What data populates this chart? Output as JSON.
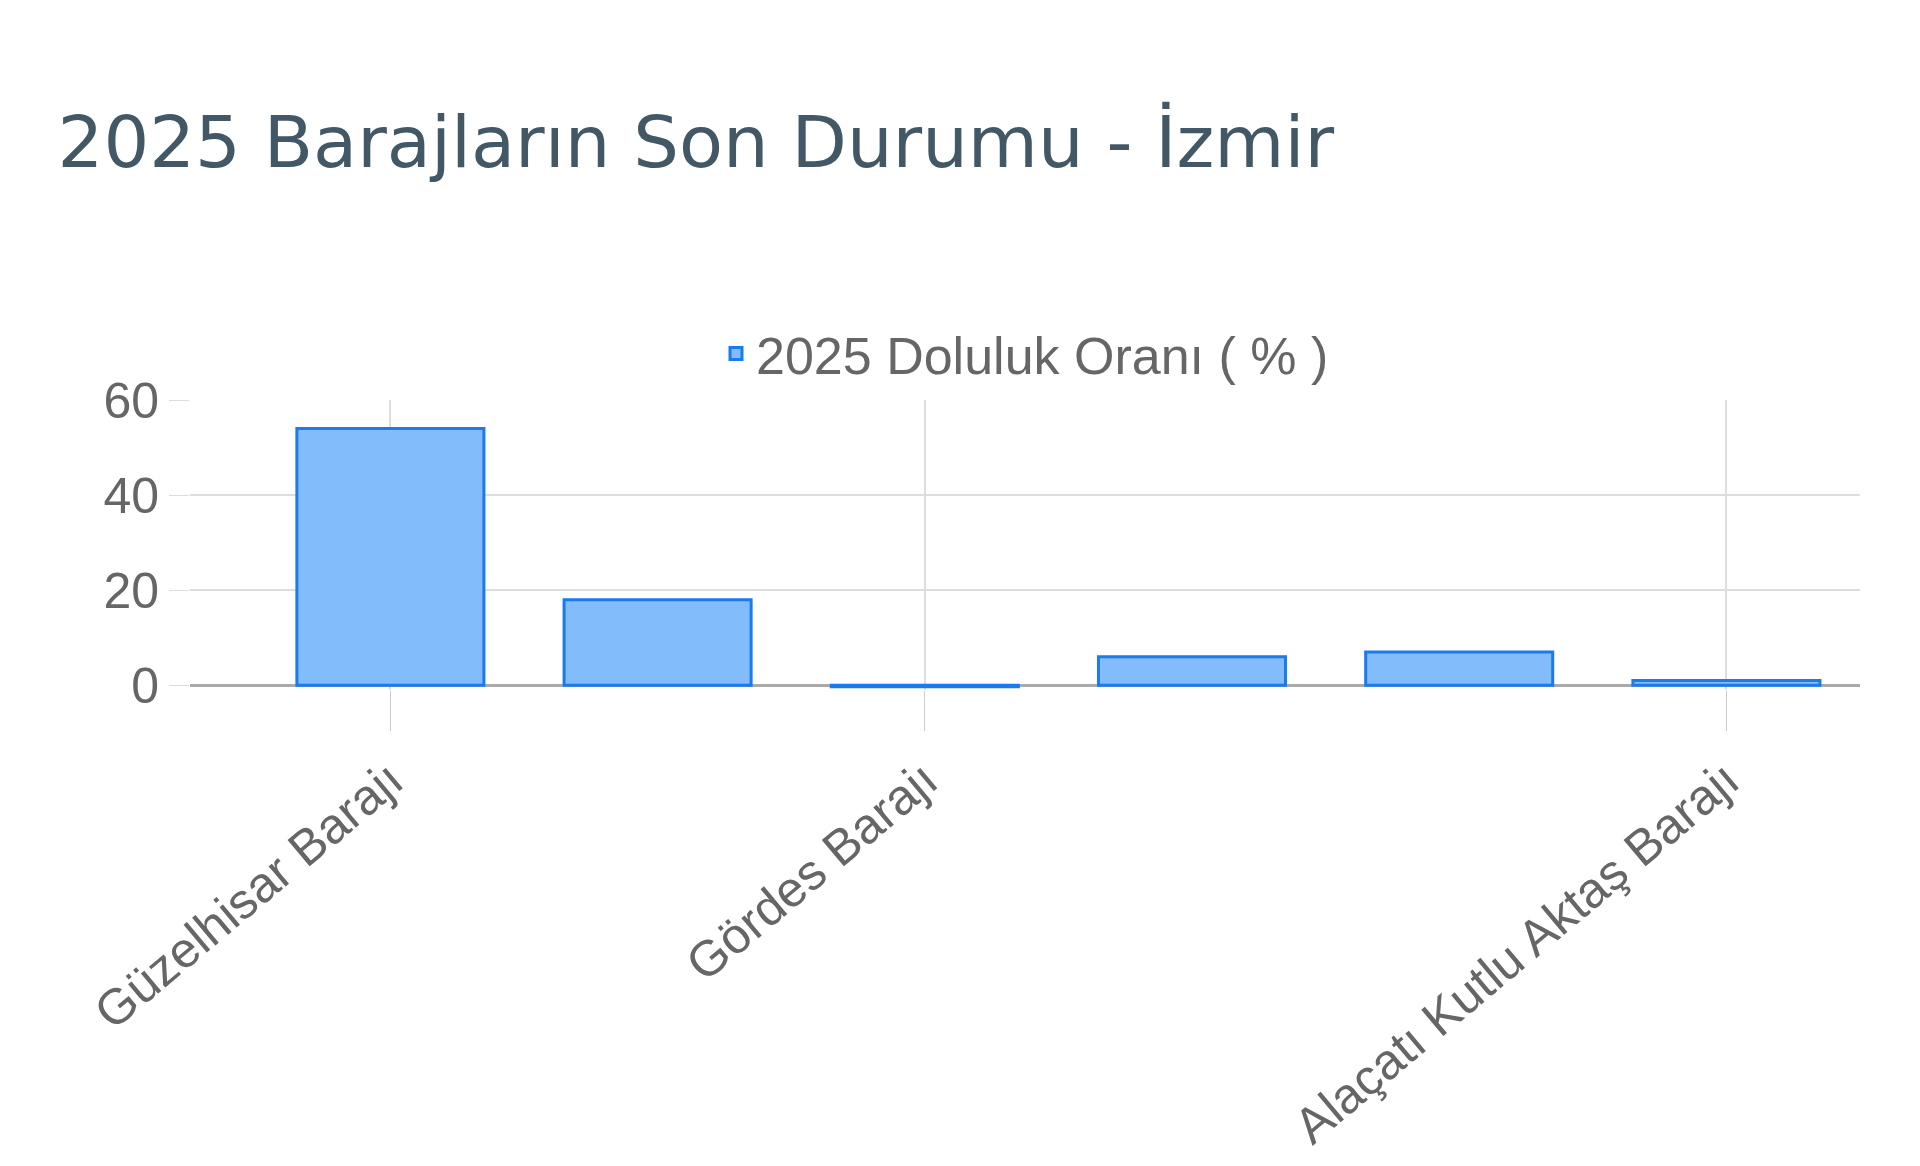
{
  "chart_data": {
    "type": "bar",
    "title": "2025 Barajların Son Durumu - İzmir",
    "categories": [
      "Güzelhisar Barajı",
      null,
      "Gördes Barajı",
      null,
      null,
      "Alaçatı Kutlu Aktaş Barajı"
    ],
    "series": [
      {
        "name": "2025 Doluluk Oranı ( % )",
        "color": "#82bcfa",
        "values": [
          54,
          18,
          -0.3,
          6,
          7,
          1
        ]
      }
    ],
    "ylim": [
      -1,
      60
    ],
    "yticks": [
      0,
      20,
      40,
      60
    ],
    "grid": true,
    "legend": "top"
  }
}
